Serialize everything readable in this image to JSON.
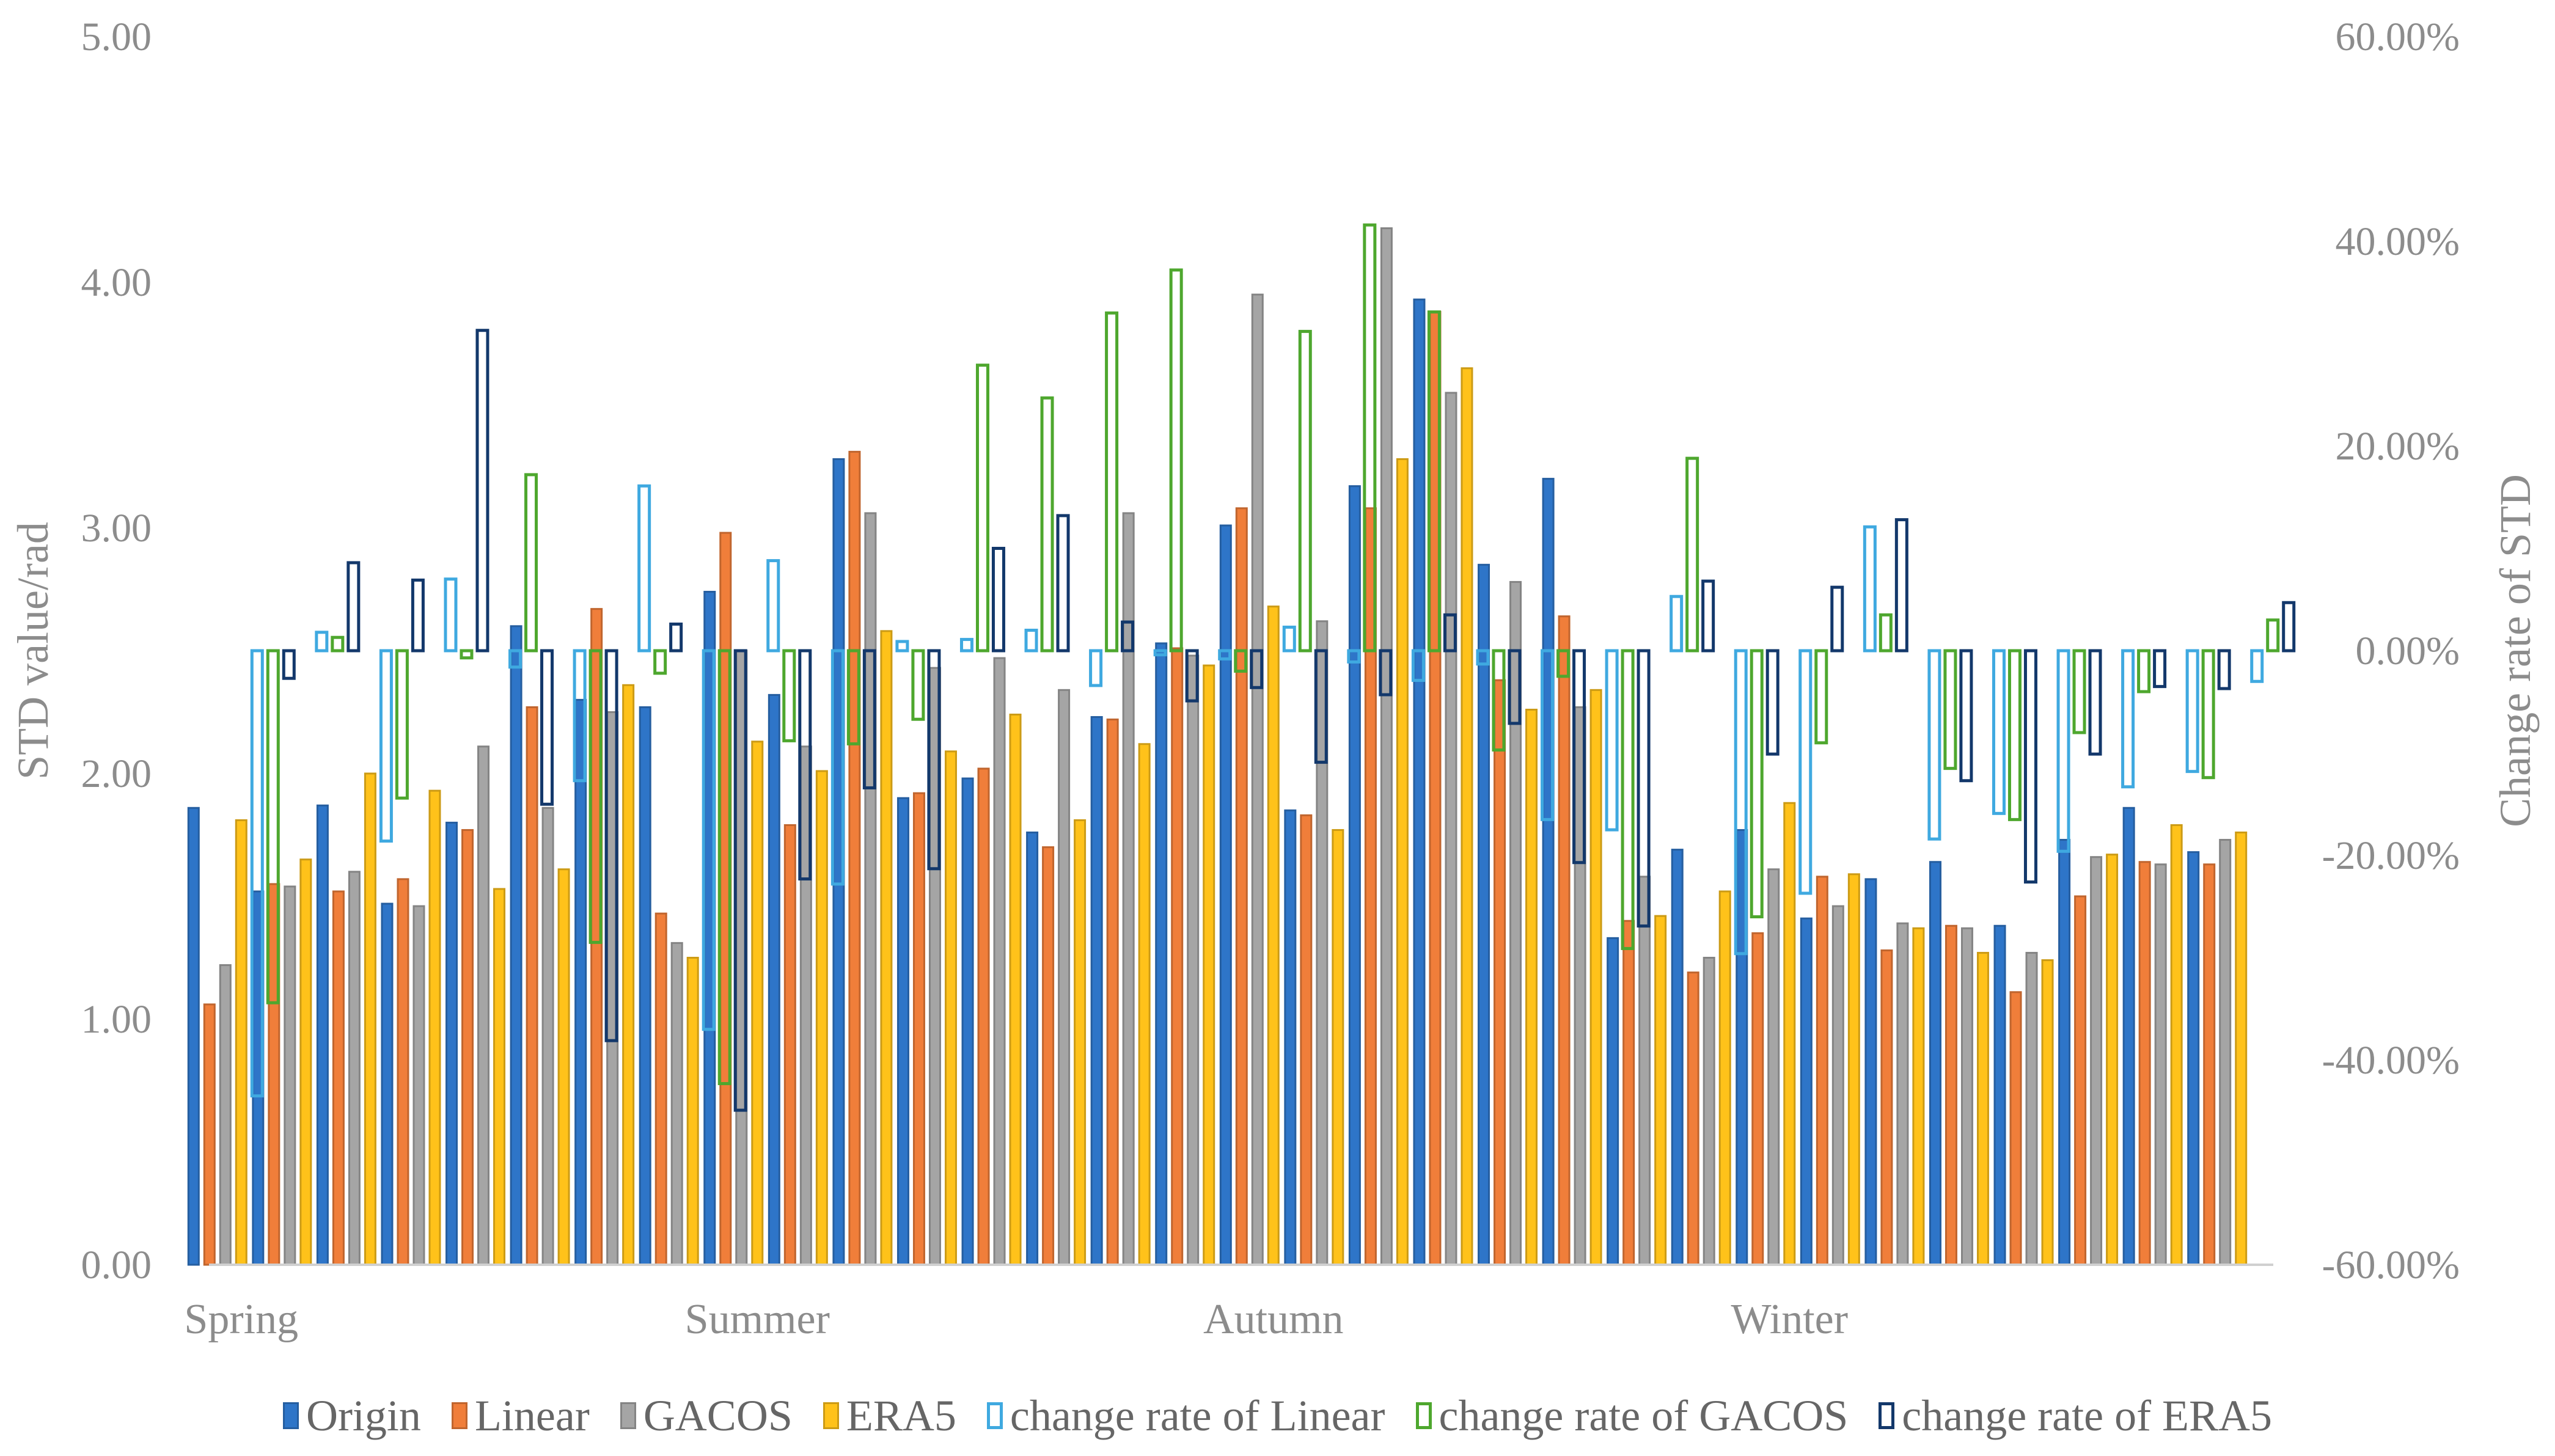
{
  "chart_data": {
    "type": "bar",
    "title": "",
    "xlabel": "",
    "ylabel": "STD value/rad",
    "y2label": "Change rate of STD",
    "ylim": [
      0,
      5
    ],
    "y2lim": [
      -60,
      60
    ],
    "y_ticks": [
      "0.00",
      "1.00",
      "2.00",
      "3.00",
      "4.00",
      "5.00"
    ],
    "y2_ticks": [
      "-60.00%",
      "-40.00%",
      "-20.00%",
      "0.00%",
      "20.00%",
      "40.00%",
      "60.00%"
    ],
    "season_labels": [
      {
        "label": "Spring",
        "index": 0
      },
      {
        "label": "Summer",
        "index": 8
      },
      {
        "label": "Autumn",
        "index": 16
      },
      {
        "label": "Winter",
        "index": 24
      }
    ],
    "n_groups": 32,
    "series": [
      {
        "name": "Origin",
        "axis": "left",
        "style": "filled",
        "color": "#2e75c8",
        "values": [
          1.86,
          1.52,
          1.87,
          1.47,
          1.8,
          2.6,
          2.3,
          2.27,
          2.74,
          2.32,
          3.28,
          1.9,
          1.98,
          1.76,
          2.23,
          2.53,
          3.01,
          1.85,
          3.17,
          3.93,
          2.85,
          3.2,
          1.33,
          1.69,
          1.77,
          1.41,
          1.57,
          1.64,
          1.38,
          1.73,
          1.86,
          1.68
        ]
      },
      {
        "name": "Linear",
        "axis": "left",
        "style": "filled",
        "color": "#f07e3a",
        "values": [
          1.06,
          1.55,
          1.52,
          1.57,
          1.77,
          2.27,
          2.67,
          1.43,
          2.98,
          1.79,
          3.31,
          1.92,
          2.02,
          1.7,
          2.22,
          2.51,
          3.08,
          1.83,
          3.08,
          3.88,
          2.38,
          2.64,
          1.4,
          1.19,
          1.35,
          1.58,
          1.28,
          1.38,
          1.11,
          1.5,
          1.64,
          1.63
        ]
      },
      {
        "name": "GACOS",
        "axis": "left",
        "style": "filled",
        "color": "#a5a5a5",
        "values": [
          1.22,
          1.54,
          1.6,
          1.46,
          2.11,
          1.86,
          2.25,
          1.31,
          2.5,
          2.11,
          3.06,
          2.43,
          2.47,
          2.34,
          3.06,
          2.48,
          3.95,
          2.62,
          4.22,
          3.55,
          2.78,
          2.27,
          1.58,
          1.25,
          1.61,
          1.46,
          1.39,
          1.37,
          1.27,
          1.66,
          1.63,
          1.73
        ]
      },
      {
        "name": "ERA5",
        "axis": "left",
        "style": "filled",
        "color": "#ffc21a",
        "values": [
          1.81,
          1.65,
          2.0,
          1.93,
          1.53,
          1.61,
          2.36,
          1.25,
          2.13,
          2.01,
          2.58,
          2.09,
          2.24,
          1.81,
          2.12,
          2.44,
          2.68,
          1.77,
          3.28,
          3.65,
          2.26,
          2.34,
          1.42,
          1.52,
          1.88,
          1.59,
          1.37,
          1.27,
          1.24,
          1.67,
          1.79,
          1.76
        ]
      },
      {
        "name": "change rate of Linear",
        "axis": "right",
        "style": "outline",
        "color": "#3fa9e0",
        "values": [
          -43.5,
          1.8,
          -18.6,
          7.0,
          -1.6,
          -12.7,
          16.1,
          -37.0,
          8.8,
          -22.8,
          0.9,
          1.1,
          2.0,
          -3.4,
          -0.4,
          -0.8,
          2.3,
          -1.1,
          -2.9,
          -1.3,
          -16.5,
          -17.5,
          5.3,
          -29.6,
          -23.7,
          12.1,
          -18.4,
          -15.9,
          -19.6,
          -13.3,
          -11.8,
          -3.0
        ]
      },
      {
        "name": "change rate of GACOS",
        "axis": "right",
        "style": "outline",
        "color": "#4ea72e",
        "values": [
          -34.4,
          1.3,
          -14.4,
          -0.7,
          17.2,
          -28.5,
          -2.2,
          -42.3,
          -8.8,
          -9.1,
          -6.7,
          27.9,
          24.7,
          33.0,
          37.2,
          -2.0,
          31.2,
          41.6,
          33.1,
          -9.7,
          -2.5,
          -29.1,
          18.8,
          -26.0,
          -9.0,
          3.5,
          -11.5,
          -16.5,
          -8.0,
          -4.0,
          -12.4,
          3.0
        ]
      },
      {
        "name": "change rate of ERA5",
        "axis": "right",
        "style": "outline",
        "color": "#13386b",
        "values": [
          -2.7,
          8.6,
          6.9,
          31.3,
          -15.0,
          -38.1,
          2.6,
          -44.9,
          -22.3,
          -13.4,
          -21.3,
          10.0,
          13.2,
          2.8,
          -4.9,
          -3.6,
          -10.9,
          -4.3,
          3.5,
          -7.1,
          -20.7,
          -26.9,
          6.8,
          -10.1,
          6.2,
          12.8,
          -12.7,
          -22.6,
          -10.1,
          -3.5,
          -3.7,
          4.7
        ]
      }
    ]
  }
}
